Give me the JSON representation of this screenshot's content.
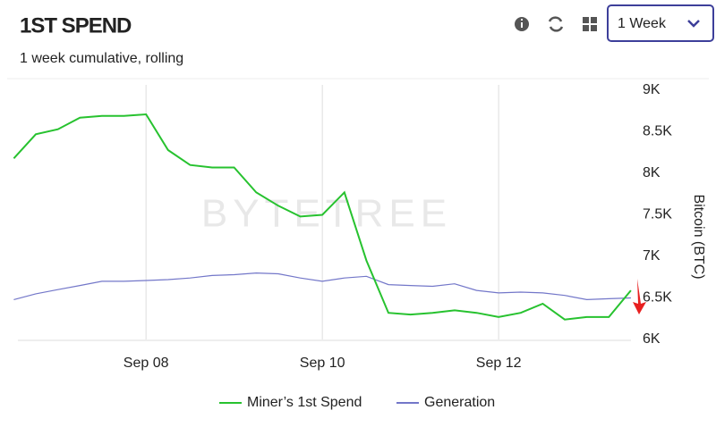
{
  "header": {
    "title": "1ST SPEND",
    "subtitle": "1 week cumulative, rolling",
    "period": "1 Week"
  },
  "chart_data": {
    "type": "line",
    "watermark": "BYTETREE",
    "y_label": "Bitcoin (BTC)",
    "categories": [
      null,
      null,
      null,
      null,
      null,
      null,
      "Sep 08",
      null,
      null,
      null,
      null,
      null,
      null,
      null,
      "Sep 10",
      null,
      null,
      null,
      null,
      null,
      null,
      null,
      "Sep 12",
      null,
      null,
      null,
      null,
      null,
      null
    ],
    "series": [
      {
        "name": "Miner’s 1st Spend",
        "color": "#27c22f",
        "values": [
          8180,
          8470,
          8530,
          8670,
          8690,
          8690,
          8710,
          8280,
          8100,
          8070,
          8070,
          7770,
          7610,
          7480,
          7500,
          7770,
          6950,
          6320,
          6300,
          6320,
          6350,
          6320,
          6270,
          6320,
          6430,
          6240,
          6270,
          6270,
          6590
        ]
      },
      {
        "name": "Generation",
        "color": "#7377c9",
        "values": [
          6480,
          6550,
          6600,
          6650,
          6700,
          6700,
          6710,
          6720,
          6740,
          6770,
          6780,
          6800,
          6790,
          6740,
          6700,
          6740,
          6760,
          6660,
          6650,
          6640,
          6670,
          6590,
          6560,
          6570,
          6560,
          6530,
          6480,
          6490,
          6500
        ]
      }
    ],
    "ylim": [
      6000,
      9000
    ],
    "yticks": [
      {
        "value": 6000,
        "label": "6K"
      },
      {
        "value": 6500,
        "label": "6.5K"
      },
      {
        "value": 7000,
        "label": "7K"
      },
      {
        "value": 7500,
        "label": "7.5K"
      },
      {
        "value": 8000,
        "label": "8K"
      },
      {
        "value": 8500,
        "label": "8.5K"
      },
      {
        "value": 9000,
        "label": "9K"
      }
    ],
    "grid": "x",
    "legend": "bottom"
  }
}
